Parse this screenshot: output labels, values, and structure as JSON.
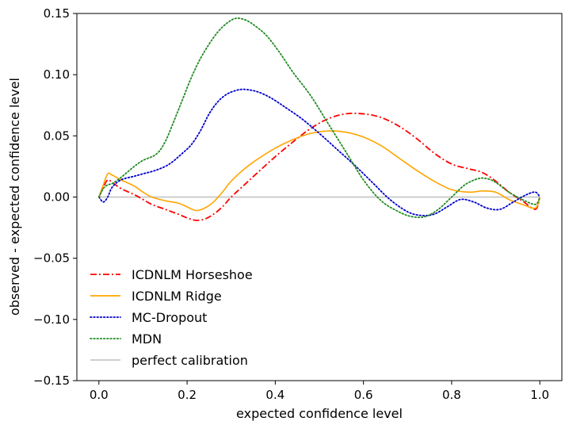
{
  "chart_data": {
    "type": "line",
    "xlabel": "expected confidence level",
    "ylabel": "observed - expected confidence level",
    "xlim": [
      -0.05,
      1.05
    ],
    "ylim": [
      -0.15,
      0.15
    ],
    "xticks": [
      0.0,
      0.2,
      0.4,
      0.6,
      0.8,
      1.0
    ],
    "xtick_labels": [
      "0.0",
      "0.2",
      "0.4",
      "0.6",
      "0.8",
      "1.0"
    ],
    "yticks": [
      -0.15,
      -0.1,
      -0.05,
      0.0,
      0.05,
      0.1,
      0.15
    ],
    "ytick_labels": [
      "−0.15",
      "−0.10",
      "−0.05",
      "0.00",
      "0.05",
      "0.10",
      "0.15"
    ],
    "grid": false,
    "legend_position": "lower-left",
    "series": [
      {
        "name": "ICDNLM Horseshoe",
        "color": "#ff0000",
        "style": "dashdot",
        "x": [
          0.0,
          0.01,
          0.02,
          0.03,
          0.05,
          0.08,
          0.1,
          0.12,
          0.15,
          0.18,
          0.2,
          0.22,
          0.24,
          0.26,
          0.28,
          0.3,
          0.33,
          0.36,
          0.4,
          0.44,
          0.48,
          0.52,
          0.56,
          0.6,
          0.64,
          0.68,
          0.72,
          0.76,
          0.8,
          0.84,
          0.87,
          0.9,
          0.93,
          0.96,
          0.99,
          1.0
        ],
        "y": [
          0.0,
          0.008,
          0.014,
          0.012,
          0.007,
          0.002,
          -0.002,
          -0.006,
          -0.01,
          -0.014,
          -0.017,
          -0.019,
          -0.018,
          -0.014,
          -0.008,
          0.0,
          0.01,
          0.02,
          0.033,
          0.045,
          0.056,
          0.064,
          0.068,
          0.068,
          0.065,
          0.058,
          0.048,
          0.036,
          0.027,
          0.023,
          0.02,
          0.013,
          0.004,
          -0.003,
          -0.01,
          0.0
        ]
      },
      {
        "name": "ICDNLM Ridge",
        "color": "#ffa500",
        "style": "solid",
        "x": [
          0.0,
          0.01,
          0.02,
          0.03,
          0.05,
          0.08,
          0.1,
          0.12,
          0.15,
          0.18,
          0.2,
          0.22,
          0.24,
          0.26,
          0.28,
          0.3,
          0.33,
          0.36,
          0.4,
          0.44,
          0.48,
          0.52,
          0.56,
          0.6,
          0.64,
          0.68,
          0.72,
          0.76,
          0.8,
          0.84,
          0.87,
          0.9,
          0.93,
          0.96,
          0.99,
          1.0
        ],
        "y": [
          0.0,
          0.01,
          0.019,
          0.018,
          0.014,
          0.009,
          0.004,
          0.0,
          -0.003,
          -0.005,
          -0.008,
          -0.011,
          -0.009,
          -0.004,
          0.004,
          0.013,
          0.023,
          0.031,
          0.04,
          0.047,
          0.052,
          0.054,
          0.053,
          0.049,
          0.042,
          0.032,
          0.022,
          0.013,
          0.006,
          0.004,
          0.005,
          0.004,
          -0.002,
          -0.006,
          -0.009,
          0.0
        ]
      },
      {
        "name": "MC-Dropout",
        "color": "#0000cc",
        "style": "dotted",
        "x": [
          0.0,
          0.01,
          0.02,
          0.03,
          0.05,
          0.08,
          0.1,
          0.13,
          0.16,
          0.19,
          0.21,
          0.23,
          0.25,
          0.27,
          0.29,
          0.31,
          0.33,
          0.36,
          0.39,
          0.42,
          0.46,
          0.5,
          0.54,
          0.58,
          0.62,
          0.66,
          0.7,
          0.73,
          0.76,
          0.79,
          0.82,
          0.85,
          0.88,
          0.91,
          0.94,
          0.97,
          0.99,
          1.0
        ],
        "y": [
          0.0,
          -0.004,
          0.0,
          0.008,
          0.014,
          0.017,
          0.019,
          0.022,
          0.027,
          0.036,
          0.043,
          0.054,
          0.068,
          0.078,
          0.084,
          0.087,
          0.088,
          0.086,
          0.081,
          0.074,
          0.064,
          0.052,
          0.039,
          0.026,
          0.012,
          -0.002,
          -0.012,
          -0.015,
          -0.014,
          -0.008,
          -0.002,
          -0.004,
          -0.009,
          -0.01,
          -0.004,
          0.002,
          0.004,
          0.0
        ]
      },
      {
        "name": "MDN",
        "color": "#228b22",
        "style": "dotted",
        "x": [
          0.0,
          0.01,
          0.02,
          0.03,
          0.05,
          0.08,
          0.1,
          0.13,
          0.15,
          0.17,
          0.19,
          0.21,
          0.23,
          0.25,
          0.27,
          0.29,
          0.31,
          0.33,
          0.35,
          0.38,
          0.41,
          0.44,
          0.48,
          0.52,
          0.56,
          0.6,
          0.64,
          0.68,
          0.71,
          0.74,
          0.77,
          0.8,
          0.83,
          0.86,
          0.88,
          0.9,
          0.93,
          0.96,
          0.99,
          1.0
        ],
        "y": [
          0.0,
          0.007,
          0.01,
          0.011,
          0.016,
          0.025,
          0.03,
          0.035,
          0.045,
          0.062,
          0.08,
          0.098,
          0.113,
          0.125,
          0.135,
          0.142,
          0.146,
          0.145,
          0.141,
          0.132,
          0.118,
          0.102,
          0.083,
          0.06,
          0.037,
          0.014,
          -0.003,
          -0.012,
          -0.016,
          -0.016,
          -0.01,
          0.0,
          0.01,
          0.015,
          0.015,
          0.012,
          0.004,
          -0.002,
          -0.006,
          0.0
        ]
      },
      {
        "name": "perfect calibration",
        "color": "#c8c8c8",
        "style": "solid",
        "x": [
          0.0,
          1.0
        ],
        "y": [
          0.0,
          0.0
        ]
      }
    ]
  }
}
